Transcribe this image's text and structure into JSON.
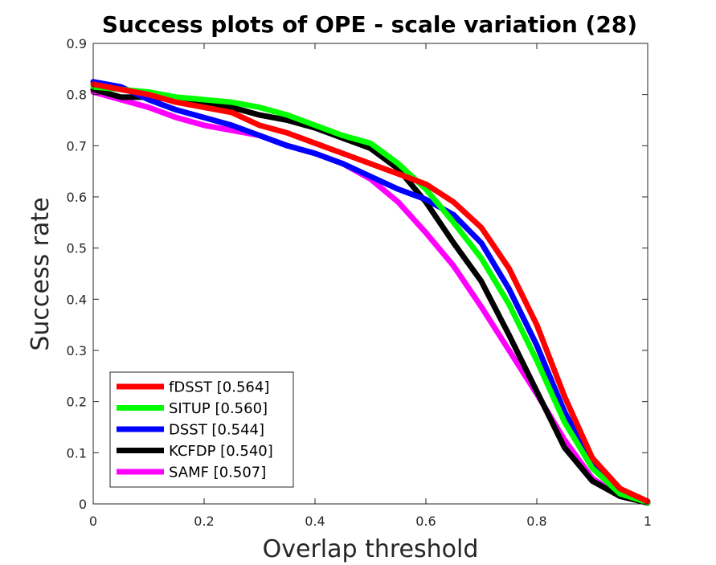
{
  "chart_data": {
    "type": "line",
    "title": "Success plots of OPE - scale variation (28)",
    "xlabel": "Overlap threshold",
    "ylabel": "Success rate",
    "xlim": [
      0,
      1
    ],
    "ylim": [
      0,
      0.9
    ],
    "xticks": [
      0,
      0.2,
      0.4,
      0.6,
      0.8,
      1
    ],
    "xtick_labels": [
      "0",
      "0.2",
      "0.4",
      "0.6",
      "0.8",
      "1"
    ],
    "yticks": [
      0,
      0.1,
      0.2,
      0.3,
      0.4,
      0.5,
      0.6,
      0.7,
      0.8,
      0.9
    ],
    "ytick_labels": [
      "0",
      "0.1",
      "0.2",
      "0.3",
      "0.4",
      "0.5",
      "0.6",
      "0.7",
      "0.8",
      "0.9"
    ],
    "grid": false,
    "legend_position": "bottom-left",
    "x": [
      0,
      0.05,
      0.1,
      0.15,
      0.2,
      0.25,
      0.3,
      0.35,
      0.4,
      0.45,
      0.5,
      0.55,
      0.6,
      0.65,
      0.7,
      0.75,
      0.8,
      0.85,
      0.9,
      0.95,
      1
    ],
    "series": [
      {
        "name": "fDSST [0.564]",
        "color": "#ff0000",
        "values": [
          0.82,
          0.81,
          0.8,
          0.785,
          0.775,
          0.765,
          0.74,
          0.725,
          0.705,
          0.685,
          0.665,
          0.645,
          0.625,
          0.59,
          0.54,
          0.46,
          0.35,
          0.21,
          0.09,
          0.03,
          0.005
        ]
      },
      {
        "name": "SITUP [0.560]",
        "color": "#00ff00",
        "values": [
          0.815,
          0.81,
          0.805,
          0.795,
          0.79,
          0.785,
          0.775,
          0.76,
          0.74,
          0.72,
          0.705,
          0.665,
          0.615,
          0.55,
          0.48,
          0.39,
          0.28,
          0.16,
          0.07,
          0.02,
          0.003
        ]
      },
      {
        "name": "DSST [0.544]",
        "color": "#0000ff",
        "values": [
          0.825,
          0.815,
          0.79,
          0.77,
          0.755,
          0.74,
          0.72,
          0.7,
          0.685,
          0.665,
          0.64,
          0.615,
          0.595,
          0.565,
          0.51,
          0.42,
          0.31,
          0.18,
          0.08,
          0.025,
          0.004
        ]
      },
      {
        "name": "KCFDP [0.540]",
        "color": "#000000",
        "values": [
          0.81,
          0.795,
          0.795,
          0.79,
          0.785,
          0.775,
          0.76,
          0.75,
          0.735,
          0.715,
          0.695,
          0.655,
          0.59,
          0.51,
          0.435,
          0.33,
          0.22,
          0.11,
          0.045,
          0.015,
          0.002
        ]
      },
      {
        "name": "SAMF [0.507]",
        "color": "#ff00ff",
        "values": [
          0.805,
          0.79,
          0.775,
          0.755,
          0.74,
          0.73,
          0.72,
          0.7,
          0.685,
          0.665,
          0.635,
          0.59,
          0.53,
          0.465,
          0.385,
          0.3,
          0.215,
          0.125,
          0.05,
          0.015,
          0.003
        ]
      }
    ]
  }
}
